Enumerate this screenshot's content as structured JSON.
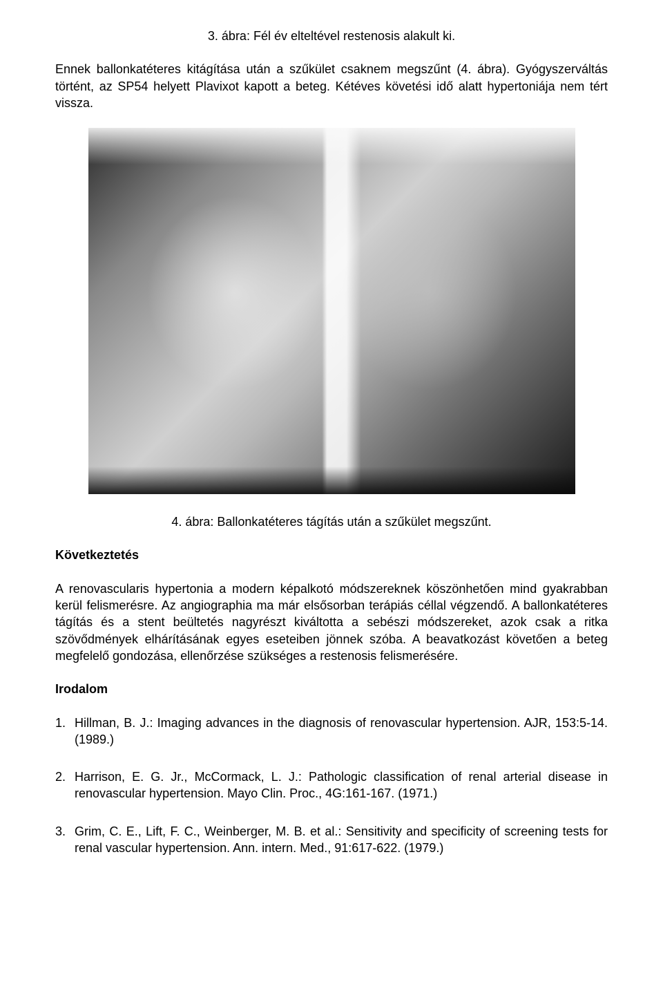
{
  "caption1": "3. ábra: Fél év elteltével restenosis alakult ki.",
  "para1": "Ennek ballonkatéteres kitágítása után a szűkület csaknem megszűnt (4. ábra). Gyógyszerváltás történt, az SP54 helyett Plavixot kapott a beteg. Kétéves követési idő alatt hypertoniája nem tért vissza.",
  "caption2": "4. ábra: Ballonkatéteres tágítás után a szűkület megszűnt.",
  "heading_conclusion": "Következtetés",
  "para_conclusion": "A renovascularis hypertonia a modern képalkotó módszereknek köszönhetően mind gyakrabban kerül felismerésre. Az angiographia ma már elsősorban terápiás céllal végzendő. A ballonkatéteres tágítás és a stent beültetés nagyrészt kiváltotta a sebészi módszereket, azok csak a ritka szövődmények elhárításának egyes eseteiben jönnek szóba. A beavatkozást követően a beteg megfelelő gondozása, ellenőrzése szükséges a restenosis felismerésére.",
  "heading_refs": "Irodalom",
  "references": [
    {
      "num": "1.",
      "text": "Hillman, B. J.: Imaging advances in the diagnosis of renovascular hypertension. AJR, 153:5-14. (1989.)"
    },
    {
      "num": "2.",
      "text": "Harrison, E. G. Jr., McCormack, L. J.: Pathologic classification of renal arterial disease in renovascular hypertension. Mayo Clin. Proc., 4G:161-167. (1971.)"
    },
    {
      "num": "3.",
      "text": "Grim, C. E., Lift, F. C., Weinberger, M. B. et al.: Sensitivity and specificity of screening tests for renal vascular hypertension. Ann. intern. Med., 91:617-622. (1979.)"
    }
  ]
}
